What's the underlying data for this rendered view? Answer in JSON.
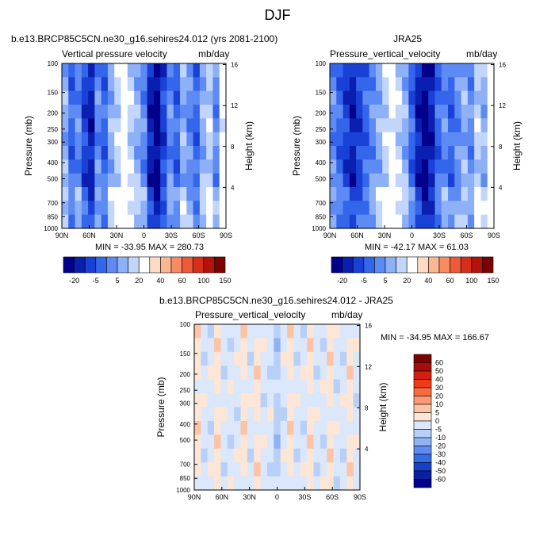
{
  "page": {
    "title": "DJF"
  },
  "panels": [
    {
      "id": "left",
      "header": "b.e13.BRCP85C5CN.ne30_g16.sehires24.012 (yrs 2081-2100)",
      "variable": "Vertical pressure velocity",
      "units": "mb/day",
      "stats": "MIN = -33.95  MAX = 280.73"
    },
    {
      "id": "right",
      "header": "JRA25",
      "variable": "Pressure_vertical_velocity",
      "units": "mb/day",
      "stats": "MIN = -42.17  MAX =  61.03"
    },
    {
      "id": "diff",
      "header": "b.e13.BRCP85C5CN.ne30_g16.sehires24.012 - JRA25",
      "variable": "Pressure_vertical_velocity",
      "units": "mb/day",
      "stats": "MIN = -34.95  MAX = 166.67"
    }
  ],
  "chart_data": [
    {
      "type": "heatmap",
      "title": "Vertical pressure velocity",
      "units": "mb/day",
      "xlabel": "",
      "ylabel": "Pressure (mb)",
      "y2label": "Height (km)",
      "x_ticks": [
        "90N",
        "60N",
        "30N",
        "0",
        "30S",
        "60S",
        "90S"
      ],
      "y_ticks": [
        100,
        150,
        200,
        250,
        300,
        400,
        500,
        700,
        850,
        1000
      ],
      "y_scale": "log",
      "ylim": [
        1000,
        100
      ],
      "y2_ticks": [
        4,
        8,
        12,
        16
      ],
      "min": -33.95,
      "max": 280.73,
      "colorbar": {
        "labels": [
          "-20",
          "-5",
          "5",
          "20",
          "40",
          "60",
          "100",
          "150"
        ],
        "colors": [
          "#00008b",
          "#0a1fb0",
          "#1a41d6",
          "#3466ec",
          "#5d8bf3",
          "#8eb0f7",
          "#c2d6fb",
          "#ffffff",
          "#fddcc6",
          "#fbb692",
          "#f78c64",
          "#ec5a3a",
          "#d72e1c",
          "#b3130b",
          "#800000"
        ]
      }
    },
    {
      "type": "heatmap",
      "title": "Pressure_vertical_velocity",
      "units": "mb/day",
      "xlabel": "",
      "ylabel": "Pressure (mb)",
      "y2label": "Height (km)",
      "x_ticks": [
        "90N",
        "60N",
        "30N",
        "0",
        "30S",
        "60S",
        "90S"
      ],
      "y_ticks": [
        100,
        150,
        200,
        250,
        300,
        400,
        500,
        700,
        850,
        1000
      ],
      "y_scale": "log",
      "ylim": [
        1000,
        100
      ],
      "y2_ticks": [
        4,
        8,
        12,
        16
      ],
      "min": -42.17,
      "max": 61.03,
      "colorbar": {
        "labels": [
          "-20",
          "-5",
          "5",
          "20",
          "40",
          "60",
          "100",
          "150"
        ],
        "colors": [
          "#00008b",
          "#0a1fb0",
          "#1a41d6",
          "#3466ec",
          "#5d8bf3",
          "#8eb0f7",
          "#c2d6fb",
          "#ffffff",
          "#fddcc6",
          "#fbb692",
          "#f78c64",
          "#ec5a3a",
          "#d72e1c",
          "#b3130b",
          "#800000"
        ]
      }
    },
    {
      "type": "heatmap",
      "title": "Pressure_vertical_velocity",
      "units": "mb/day",
      "xlabel": "",
      "ylabel": "Pressure (mb)",
      "y2label": "Height (km)",
      "x_ticks": [
        "90N",
        "60N",
        "30N",
        "0",
        "30S",
        "60S",
        "90S"
      ],
      "y_ticks": [
        100,
        150,
        200,
        250,
        300,
        400,
        500,
        700,
        850,
        1000
      ],
      "y_scale": "log",
      "ylim": [
        1000,
        100
      ],
      "y2_ticks": [
        4,
        8,
        12,
        16
      ],
      "min": -34.95,
      "max": 166.67,
      "colorbar": {
        "labels": [
          "60",
          "50",
          "40",
          "30",
          "20",
          "10",
          "5",
          "0",
          "-5",
          "-10",
          "-20",
          "-30",
          "-40",
          "-50",
          "-60"
        ],
        "colors": [
          "#800000",
          "#a80c0c",
          "#d21f10",
          "#f03a16",
          "#f76a3e",
          "#fa9a70",
          "#fcc4a4",
          "#fde6d6",
          "#dbe7fb",
          "#b8d0f8",
          "#8fb2f4",
          "#5f8cee",
          "#346be6",
          "#1740c8",
          "#0a209f",
          "#00008b"
        ]
      }
    }
  ]
}
